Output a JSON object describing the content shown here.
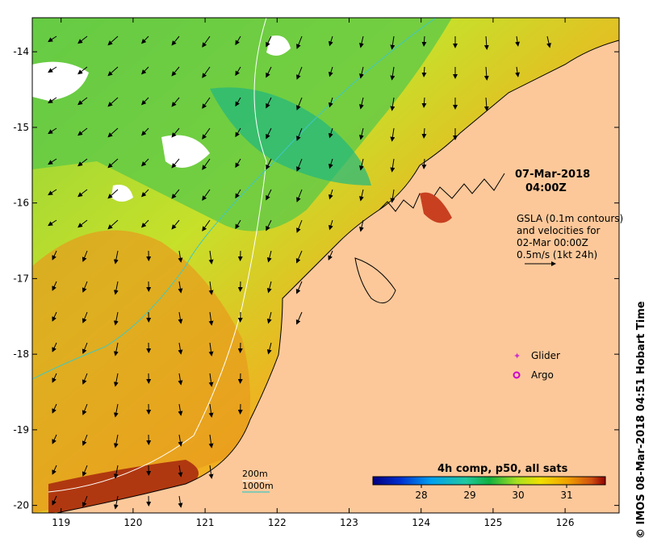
{
  "map": {
    "lon_ticks": [
      "119",
      "120",
      "121",
      "122",
      "123",
      "124",
      "125",
      "126"
    ],
    "lat_ticks": [
      "-14",
      "-15",
      "-16",
      "-17",
      "-18",
      "-19",
      "-20"
    ],
    "bounds": {
      "lon_min": 118.6,
      "lon_max": 126.75,
      "lat_min": -20.1,
      "lat_max": -13.55
    },
    "land_color": "#fcc89a"
  },
  "annotations": {
    "date": "07-Mar-2018",
    "time": "04:00Z",
    "gsla_lines": [
      "GSLA (0.1m contours)",
      "and velocities for",
      "02-Mar 00:00Z",
      "0.5m/s (1kt 24h)"
    ]
  },
  "legend": {
    "glider": "Glider",
    "argo": "Argo",
    "glider_color": "#cc33cc",
    "argo_color": "#cc00cc"
  },
  "isobaths": {
    "depth_200": "200m",
    "depth_1000": "1000m",
    "color_200": "#ffffff",
    "color_1000": "#40c8c0"
  },
  "colorbar": {
    "title": "4h comp, p50, all sats",
    "ticks": [
      "28",
      "29",
      "30",
      "31"
    ],
    "range": [
      27.0,
      31.8
    ]
  },
  "credit": "© IMOS 08-Mar-2018 04:51 Hobart Time"
}
